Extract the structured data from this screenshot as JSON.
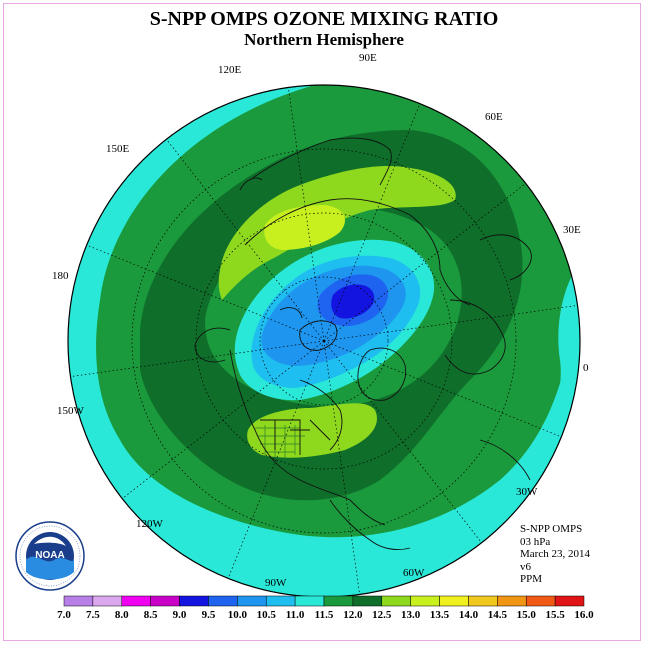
{
  "title": "S-NPP OMPS OZONE MIXING RATIO",
  "subtitle": "Northern Hemisphere",
  "longitude_labels": [
    {
      "key": "90E",
      "text": "90E"
    },
    {
      "key": "120E",
      "text": "120E"
    },
    {
      "key": "60E",
      "text": "60E"
    },
    {
      "key": "150E",
      "text": "150E"
    },
    {
      "key": "30E",
      "text": "30E"
    },
    {
      "key": "180",
      "text": "180"
    },
    {
      "key": "0",
      "text": "0"
    },
    {
      "key": "150W",
      "text": "150W"
    },
    {
      "key": "30W",
      "text": "30W"
    },
    {
      "key": "120W",
      "text": "120W"
    },
    {
      "key": "60W",
      "text": "60W"
    },
    {
      "key": "90W",
      "text": "90W"
    }
  ],
  "info": {
    "instrument": "S-NPP OMPS",
    "level": "03 hPa",
    "date": "March 23, 2014",
    "version": "v6",
    "units": "PPM"
  },
  "logo": {
    "text": "NOAA",
    "ring_text": "NATIONAL OCEANIC AND ATMOSPHERIC ADMINISTRATION · U.S. DEPARTMENT OF COMMERCE"
  },
  "colorbar": {
    "ticks": [
      "7.0",
      "7.5",
      "8.0",
      "8.5",
      "9.0",
      "9.5",
      "10.0",
      "10.5",
      "11.0",
      "11.5",
      "12.0",
      "12.5",
      "13.0",
      "13.5",
      "14.0",
      "14.5",
      "15.0",
      "15.5",
      "16.0"
    ],
    "colors": [
      "#b87fe8",
      "#dba8ef",
      "#f000f0",
      "#c800c8",
      "#1414e0",
      "#1e64f0",
      "#1e96f0",
      "#1ebef0",
      "#2ae8d8",
      "#1a9a3c",
      "#0f6e2a",
      "#8ed81e",
      "#c8f01e",
      "#f0f01e",
      "#f0c81e",
      "#f09614",
      "#f05a14",
      "#e01414",
      "#8c5a3c"
    ]
  },
  "map_legend_levels": {
    "outer_cyan": "10.5-11.0",
    "green": "11.0-11.5",
    "dark_green": "11.5-12.0",
    "yellow_green": "12.0-12.5",
    "yellow": "12.5-13.0",
    "ocean_lightblue": "10.0-10.5",
    "blue": "9.5-10.0",
    "dark_blue": "9.0-9.5",
    "deep_blue": "8.5-9.0"
  }
}
